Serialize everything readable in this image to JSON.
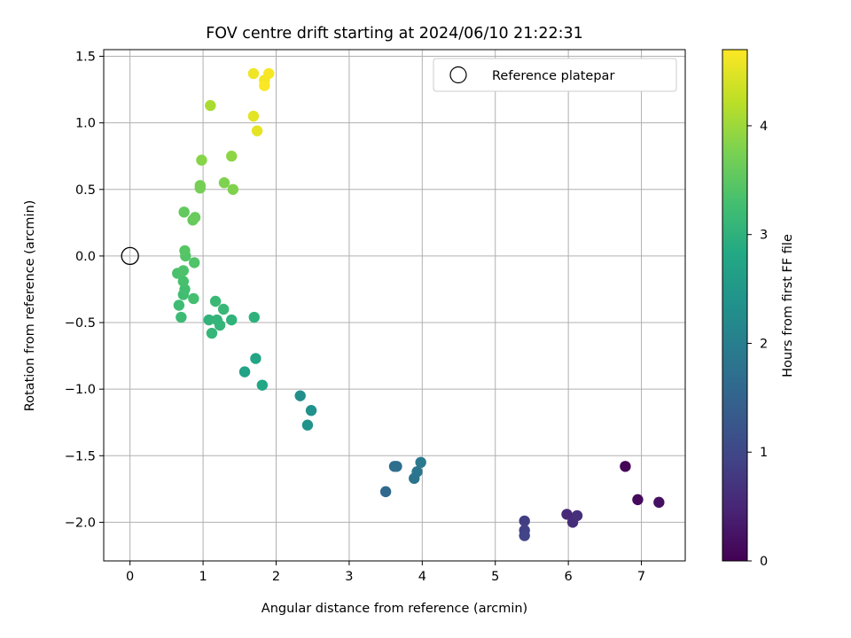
{
  "chart_data": {
    "type": "scatter",
    "title": "FOV centre drift starting at 2024/06/10 21:22:31",
    "xlabel": "Angular distance from reference (arcmin)",
    "ylabel": "Rotation from reference (arcmin)",
    "xlim": [
      -0.36,
      7.6
    ],
    "ylim": [
      -2.29,
      1.55
    ],
    "xticks": [
      0,
      1,
      2,
      3,
      4,
      5,
      6,
      7
    ],
    "yticks": [
      -2.0,
      -1.5,
      -1.0,
      -0.5,
      0.0,
      0.5,
      1.0,
      1.5
    ],
    "ytick_labels": [
      "−2.0",
      "−1.5",
      "−1.0",
      "−0.5",
      "0.0",
      "0.5",
      "1.0",
      "1.5"
    ],
    "grid": true,
    "legend": {
      "placement": "top-right",
      "entries": [
        "Reference platepar"
      ]
    },
    "reference_point": {
      "x": 0,
      "y": 0,
      "marker": "open-circle"
    },
    "colorbar": {
      "label": "Hours from first FF file",
      "range": [
        0,
        4.7
      ],
      "ticks": [
        0,
        1,
        2,
        3,
        4
      ],
      "colormap": "viridis"
    },
    "points": [
      {
        "x": 6.78,
        "y": -1.58,
        "c": 0.05
      },
      {
        "x": 6.95,
        "y": -1.83,
        "c": 0.12
      },
      {
        "x": 7.24,
        "y": -1.85,
        "c": 0.2
      },
      {
        "x": 5.98,
        "y": -1.94,
        "c": 0.55
      },
      {
        "x": 6.06,
        "y": -2.0,
        "c": 0.6
      },
      {
        "x": 6.12,
        "y": -1.95,
        "c": 0.65
      },
      {
        "x": 5.4,
        "y": -1.99,
        "c": 0.85
      },
      {
        "x": 5.4,
        "y": -2.06,
        "c": 0.9
      },
      {
        "x": 5.4,
        "y": -2.1,
        "c": 0.95
      },
      {
        "x": 3.5,
        "y": -1.77,
        "c": 1.6
      },
      {
        "x": 3.62,
        "y": -1.58,
        "c": 1.7
      },
      {
        "x": 3.65,
        "y": -1.58,
        "c": 1.72
      },
      {
        "x": 3.89,
        "y": -1.67,
        "c": 1.8
      },
      {
        "x": 3.93,
        "y": -1.62,
        "c": 1.85
      },
      {
        "x": 3.98,
        "y": -1.55,
        "c": 1.9
      },
      {
        "x": 2.33,
        "y": -1.05,
        "c": 2.3
      },
      {
        "x": 2.48,
        "y": -1.16,
        "c": 2.35
      },
      {
        "x": 2.43,
        "y": -1.27,
        "c": 2.4
      },
      {
        "x": 1.57,
        "y": -0.87,
        "c": 2.7
      },
      {
        "x": 1.72,
        "y": -0.77,
        "c": 2.75
      },
      {
        "x": 1.81,
        "y": -0.97,
        "c": 2.8
      },
      {
        "x": 1.7,
        "y": -0.46,
        "c": 3.0
      },
      {
        "x": 1.39,
        "y": -0.48,
        "c": 3.02
      },
      {
        "x": 1.08,
        "y": -0.48,
        "c": 3.05
      },
      {
        "x": 1.19,
        "y": -0.48,
        "c": 3.07
      },
      {
        "x": 1.23,
        "y": -0.52,
        "c": 3.08
      },
      {
        "x": 1.12,
        "y": -0.58,
        "c": 3.1
      },
      {
        "x": 1.28,
        "y": -0.4,
        "c": 3.12
      },
      {
        "x": 1.17,
        "y": -0.34,
        "c": 3.15
      },
      {
        "x": 0.7,
        "y": -0.46,
        "c": 3.2
      },
      {
        "x": 0.67,
        "y": -0.37,
        "c": 3.22
      },
      {
        "x": 0.73,
        "y": -0.29,
        "c": 3.25
      },
      {
        "x": 0.75,
        "y": -0.25,
        "c": 3.27
      },
      {
        "x": 0.87,
        "y": -0.32,
        "c": 3.3
      },
      {
        "x": 0.73,
        "y": -0.19,
        "c": 3.32
      },
      {
        "x": 0.65,
        "y": -0.13,
        "c": 3.35
      },
      {
        "x": 0.73,
        "y": -0.11,
        "c": 3.37
      },
      {
        "x": 0.88,
        "y": -0.05,
        "c": 3.4
      },
      {
        "x": 0.76,
        "y": 0.0,
        "c": 3.42
      },
      {
        "x": 0.75,
        "y": 0.04,
        "c": 3.45
      },
      {
        "x": 0.74,
        "y": 0.33,
        "c": 3.55
      },
      {
        "x": 0.86,
        "y": 0.27,
        "c": 3.58
      },
      {
        "x": 0.89,
        "y": 0.29,
        "c": 3.6
      },
      {
        "x": 0.96,
        "y": 0.51,
        "c": 3.7
      },
      {
        "x": 0.96,
        "y": 0.53,
        "c": 3.72
      },
      {
        "x": 1.29,
        "y": 0.55,
        "c": 3.78
      },
      {
        "x": 1.41,
        "y": 0.5,
        "c": 3.8
      },
      {
        "x": 0.98,
        "y": 0.72,
        "c": 3.85
      },
      {
        "x": 1.39,
        "y": 0.75,
        "c": 3.9
      },
      {
        "x": 1.1,
        "y": 1.13,
        "c": 4.1
      },
      {
        "x": 1.69,
        "y": 1.05,
        "c": 4.5
      },
      {
        "x": 1.74,
        "y": 0.94,
        "c": 4.52
      },
      {
        "x": 1.69,
        "y": 1.37,
        "c": 4.6
      },
      {
        "x": 1.84,
        "y": 1.32,
        "c": 4.62
      },
      {
        "x": 1.9,
        "y": 1.37,
        "c": 4.65
      },
      {
        "x": 1.84,
        "y": 1.28,
        "c": 4.68
      }
    ]
  }
}
